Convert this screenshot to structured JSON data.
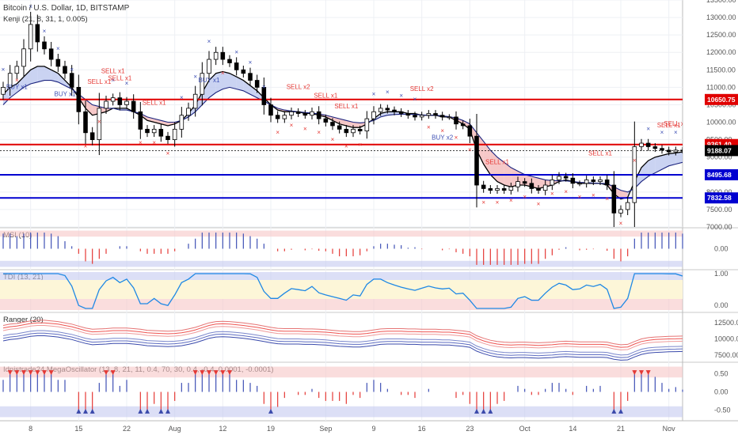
{
  "header": {
    "title": "Bitcoin / U.S. Dollar, 1D, BITSTAMP",
    "indicator": "Kenji (21, 8, 31, 1, 0.005)"
  },
  "colors": {
    "up": "#ffffff",
    "down": "#000000",
    "sell": "#e53935",
    "buy": "#3f51b5",
    "res_line": "#e00000",
    "sup_line": "#0000d0",
    "cloud_red": "#f3b6b6",
    "cloud_blue": "#b8c4ee",
    "osc_band_red": "#f7c6c6",
    "osc_band_blue": "#c4c9f0"
  },
  "chart_data": [
    {
      "type": "candlestick",
      "title": "Bitcoin / U.S. Dollar, 1D, BITSTAMP",
      "ylim": [
        7000,
        13500
      ],
      "y_ticks": [
        7000,
        7500,
        8000,
        8500,
        9000,
        9500,
        10000,
        10500,
        11000,
        11500,
        12000,
        12500,
        13000,
        13500
      ],
      "x_ticks": [
        "8",
        "15",
        "22",
        "Aug",
        "12",
        "19",
        "Sep",
        "9",
        "16",
        "23",
        "Oct",
        "14",
        "21",
        "Nov"
      ],
      "x_tick_index": [
        4,
        11,
        18,
        25,
        32,
        39,
        47,
        54,
        61,
        68,
        76,
        83,
        90,
        97
      ],
      "price_levels": [
        {
          "value": 10650.75,
          "label": "10650.75",
          "color": "#e00000"
        },
        {
          "value": 9361.4,
          "label": "9361.40",
          "color": "#e00000"
        },
        {
          "value": 9188.07,
          "label": "9188.07",
          "color": "#000000"
        },
        {
          "value": 8495.68,
          "label": "8495.68",
          "color": "#0000d0"
        },
        {
          "value": 7832.58,
          "label": "7832.58",
          "color": "#0000d0"
        }
      ],
      "closes": [
        11000,
        11400,
        11600,
        12100,
        12800,
        12300,
        12100,
        11800,
        11600,
        11400,
        11000,
        10300,
        9700,
        9500,
        10400,
        10600,
        10700,
        10500,
        10600,
        10300,
        9800,
        9700,
        9800,
        9600,
        9500,
        9800,
        10200,
        10400,
        10800,
        11400,
        11800,
        12000,
        11800,
        11700,
        11500,
        11400,
        11200,
        11000,
        10500,
        10200,
        10100,
        10200,
        10300,
        10250,
        10200,
        10300,
        10100,
        10000,
        9900,
        9800,
        9700,
        9800,
        9750,
        10100,
        10300,
        10400,
        10350,
        10300,
        10250,
        10200,
        10150,
        10200,
        10250,
        10200,
        10150,
        10150,
        9950,
        9900,
        9600,
        8200,
        8100,
        8050,
        8100,
        8050,
        8150,
        8300,
        8250,
        8100,
        8050,
        8200,
        8350,
        8450,
        8400,
        8250,
        8250,
        8350,
        8300,
        8350,
        8200,
        7400,
        7500,
        7700,
        9300,
        9400,
        9300,
        9250,
        9200,
        9150,
        9200,
        9188
      ],
      "sma_fast": [
        10800,
        11000,
        11100,
        11300,
        11500,
        11600,
        11600,
        11500,
        11400,
        11200,
        11000,
        10700,
        10400,
        10200,
        10250,
        10300,
        10400,
        10400,
        10400,
        10300,
        10200,
        10050,
        10000,
        9950,
        9900,
        9950,
        10050,
        10250,
        10500,
        10850,
        11200,
        11400,
        11450,
        11400,
        11300,
        11200,
        11050,
        10900,
        10700,
        10500,
        10350,
        10300,
        10300,
        10300,
        10250,
        10250,
        10200,
        10150,
        10050,
        9950,
        9900,
        9850,
        9850,
        9950,
        10100,
        10250,
        10300,
        10300,
        10300,
        10250,
        10250,
        10200,
        10200,
        10200,
        10150,
        10150,
        10050,
        9950,
        9800,
        9200,
        8800,
        8500,
        8300,
        8200,
        8150,
        8200,
        8200,
        8150,
        8100,
        8150,
        8200,
        8300,
        8350,
        8300,
        8250,
        8250,
        8250,
        8250,
        8200,
        7950,
        7800,
        7850,
        8300,
        8700,
        8900,
        9000,
        9050,
        9100,
        9120,
        9150
      ],
      "sma_slow": [
        10500,
        10700,
        10850,
        11000,
        11100,
        11150,
        11200,
        11200,
        11150,
        11050,
        10950,
        10800,
        10650,
        10500,
        10450,
        10400,
        10400,
        10350,
        10350,
        10300,
        10250,
        10150,
        10100,
        10050,
        10000,
        10000,
        10050,
        10150,
        10300,
        10500,
        10700,
        10850,
        10950,
        11000,
        10950,
        10900,
        10800,
        10700,
        10600,
        10500,
        10400,
        10350,
        10320,
        10300,
        10280,
        10260,
        10240,
        10200,
        10150,
        10100,
        10050,
        10000,
        9980,
        10000,
        10050,
        10150,
        10200,
        10220,
        10230,
        10230,
        10220,
        10210,
        10200,
        10200,
        10180,
        10160,
        10120,
        10050,
        9950,
        9700,
        9450,
        9200,
        9000,
        8850,
        8700,
        8600,
        8500,
        8450,
        8400,
        8350,
        8330,
        8320,
        8320,
        8300,
        8280,
        8270,
        8260,
        8250,
        8240,
        8150,
        8050,
        8000,
        8100,
        8300,
        8450,
        8550,
        8650,
        8750,
        8800,
        8850
      ],
      "signals": [
        {
          "i": 2,
          "text": "BUY x1",
          "side": "buy"
        },
        {
          "i": 17,
          "text": "SELL x1",
          "side": "sell"
        },
        {
          "i": 19,
          "text": "SELL x1",
          "side": "sell"
        },
        {
          "i": 21,
          "text": "SELL x1",
          "side": "sell"
        },
        {
          "i": 26,
          "text": "SELL x1",
          "side": "sell"
        },
        {
          "i": 11,
          "text": "BUY x1",
          "side": "buy"
        },
        {
          "i": 36,
          "text": "BUY x1",
          "side": "buy"
        },
        {
          "i": 52,
          "text": "SELL x2",
          "side": "sell"
        },
        {
          "i": 56,
          "text": "SELL x1",
          "side": "sell"
        },
        {
          "i": 60,
          "text": "SELL x1",
          "side": "sell"
        },
        {
          "i": 73,
          "text": "SELL x2",
          "side": "sell"
        },
        {
          "i": 77,
          "text": "BUY x2",
          "side": "buy"
        },
        {
          "i": 86,
          "text": "SELL x1",
          "side": "sell"
        },
        {
          "i": 105,
          "text": "SELL x1",
          "side": "sell"
        },
        {
          "i": 116,
          "text": "SELL x1",
          "side": "sell"
        },
        {
          "i": 118,
          "text": "SELL x1",
          "side": "sell"
        }
      ]
    },
    {
      "type": "bar",
      "title": "MSI (10)",
      "ylim": [
        -1,
        1
      ],
      "y_ticks": [
        0
      ],
      "y_tick_labels": [
        "0.00"
      ]
    },
    {
      "type": "line",
      "title": "TDI (13, 21)",
      "ylim": [
        -0.2,
        1.1
      ],
      "y_ticks": [
        1,
        0
      ],
      "y_tick_labels": [
        "1.00",
        "0.00"
      ]
    },
    {
      "type": "line",
      "title": "Ranger (20)",
      "ylim": [
        6500,
        14000
      ],
      "y_ticks": [
        12500,
        10000,
        7500
      ],
      "y_tick_labels": [
        "12500.00",
        "10000.00",
        "7500.00"
      ]
    },
    {
      "type": "bar",
      "title": "Idnistrade24 MegaOscillator (13, 8, 21, 11, 0.4, 70, 30, 0.4, -0.4, 0.0001, -0.0001)",
      "ylim": [
        -0.8,
        0.8
      ],
      "y_ticks": [
        0.5,
        0,
        -0.5
      ],
      "y_tick_labels": [
        "0.50",
        "0.00",
        "-0.50"
      ]
    }
  ]
}
